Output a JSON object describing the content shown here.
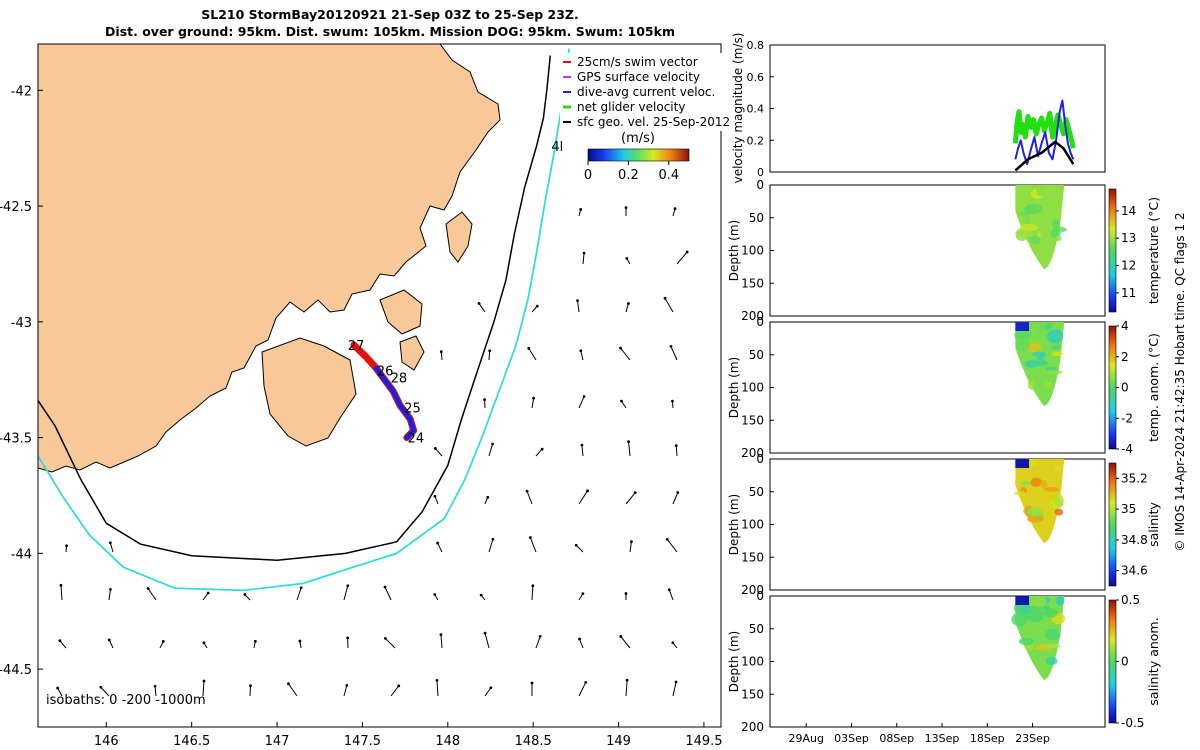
{
  "title": {
    "line1": "SL210 StormBay20120921 21-Sep 03Z to 25-Sep 23Z.",
    "line2": "Dist. over ground: 95km. Dist. swum: 105km. Mission DOG: 95km. Swum: 105km"
  },
  "colors": {
    "land": "#f9c898",
    "track": "#e8100a",
    "track_blue": "#1a22e0",
    "contour200": "#000000",
    "contour1000": "#36dada",
    "velocity_green": "#22e010",
    "velocity_blue": "#2020e0",
    "geo_black": "#000000"
  },
  "map": {
    "xlim": [
      145.6,
      149.6
    ],
    "ylim": [
      -44.75,
      -41.8
    ],
    "x_ticks": [
      146,
      146.5,
      147,
      147.5,
      148,
      148.5,
      149,
      149.5
    ],
    "x_tick_labels": [
      "146",
      "146.5",
      "147",
      "147.5",
      "148",
      "148.5",
      "149",
      "149.5"
    ],
    "y_ticks": [
      -42,
      -42.5,
      -43,
      -43.5,
      -44,
      -44.5
    ],
    "y_tick_labels": [
      "-42",
      "-42.5",
      "-43",
      "-43.5",
      "-44",
      "-44.5"
    ],
    "track_day_labels": [
      "27",
      "26",
      "28",
      "25",
      "24"
    ],
    "track_label_points": [
      [
        147.45,
        -43.1
      ],
      [
        147.62,
        -43.21
      ],
      [
        147.7,
        -43.24
      ],
      [
        147.78,
        -43.37
      ],
      [
        147.8,
        -43.5
      ]
    ],
    "time_label": "4h",
    "time_label_pos": [
      148.7,
      -42.24
    ],
    "isobaths_text": "isobaths: 0 -200 -1000m",
    "isobath_200": [
      [
        145.6,
        -43.34
      ],
      [
        145.7,
        -43.45
      ],
      [
        145.85,
        -43.68
      ],
      [
        146.0,
        -43.87
      ],
      [
        146.2,
        -43.96
      ],
      [
        146.5,
        -44.01
      ],
      [
        147.0,
        -44.03
      ],
      [
        147.4,
        -44.0
      ],
      [
        147.7,
        -43.95
      ],
      [
        147.85,
        -43.82
      ],
      [
        148.0,
        -43.62
      ],
      [
        148.08,
        -43.42
      ],
      [
        148.17,
        -43.22
      ],
      [
        148.27,
        -43.0
      ],
      [
        148.34,
        -42.82
      ],
      [
        148.39,
        -42.62
      ],
      [
        148.45,
        -42.42
      ],
      [
        148.52,
        -42.24
      ],
      [
        148.56,
        -42.12
      ],
      [
        148.58,
        -42.0
      ],
      [
        148.6,
        -41.85
      ]
    ],
    "isobath_1000": [
      [
        145.6,
        -43.58
      ],
      [
        145.75,
        -43.76
      ],
      [
        145.9,
        -43.92
      ],
      [
        146.1,
        -44.06
      ],
      [
        146.4,
        -44.15
      ],
      [
        146.8,
        -44.16
      ],
      [
        147.15,
        -44.13
      ],
      [
        147.4,
        -44.07
      ],
      [
        147.7,
        -44.0
      ],
      [
        147.98,
        -43.85
      ],
      [
        148.1,
        -43.68
      ],
      [
        148.2,
        -43.5
      ],
      [
        148.3,
        -43.3
      ],
      [
        148.4,
        -43.1
      ],
      [
        148.47,
        -42.9
      ],
      [
        148.52,
        -42.7
      ],
      [
        148.57,
        -42.48
      ],
      [
        148.62,
        -42.28
      ],
      [
        148.66,
        -42.1
      ],
      [
        148.69,
        -41.95
      ],
      [
        148.71,
        -41.82
      ]
    ],
    "legend": {
      "entries": [
        "25cm/s swim vector",
        "GPS surface velocity",
        "dive-avg current veloc.",
        "net glider velocity",
        "sfc geo. vel. 25-Sep-2012"
      ],
      "entry_colors": [
        "#e8100a",
        "#b040e0",
        "#1a22e0",
        "#22e010",
        "#000000"
      ],
      "colorbar_label": "(m/s)",
      "colorbar_ticks": [
        "0",
        "0.2",
        "0.4"
      ],
      "colorbar_values": [
        0,
        0.2,
        0.4
      ],
      "colorbar_range": [
        0,
        0.5
      ]
    }
  },
  "velocity_panel": {
    "ylabel": "velocity magnitude (m/s)",
    "ylim": [
      0,
      0.8
    ],
    "yticks": [
      "0",
      "0.2",
      "0.4",
      "0.6",
      "0.8"
    ],
    "ytick_values": [
      0,
      0.2,
      0.4,
      0.6,
      0.8
    ],
    "series": [
      {
        "name": "net glider velocity",
        "color": "#22e010",
        "x": [
          21.1,
          21.3,
          21.5,
          21.7,
          21.9,
          22.2,
          22.5,
          22.8,
          23.1,
          23.4,
          23.7,
          24.0,
          24.3,
          24.6,
          24.9,
          25.2,
          25.5,
          25.8,
          26.1,
          26.4,
          26.7,
          27.0,
          27.3,
          27.5
        ],
        "y": [
          0.18,
          0.32,
          0.38,
          0.25,
          0.3,
          0.22,
          0.35,
          0.28,
          0.33,
          0.24,
          0.3,
          0.34,
          0.26,
          0.31,
          0.37,
          0.22,
          0.29,
          0.36,
          0.3,
          0.24,
          0.33,
          0.27,
          0.2,
          0.15
        ]
      },
      {
        "name": "dive-avg current veloc.",
        "color": "#2020e0",
        "x": [
          21.1,
          21.4,
          21.7,
          22.0,
          22.4,
          22.8,
          23.2,
          23.6,
          24.0,
          24.4,
          24.8,
          25.2,
          25.6,
          26.0,
          26.3,
          26.6,
          26.9,
          27.2,
          27.5
        ],
        "y": [
          0.08,
          0.15,
          0.2,
          0.12,
          0.05,
          0.14,
          0.22,
          0.1,
          0.18,
          0.25,
          0.12,
          0.08,
          0.2,
          0.38,
          0.45,
          0.3,
          0.18,
          0.12,
          0.08
        ]
      },
      {
        "name": "sfc geo. vel.",
        "color": "#000000",
        "x": [
          21.1,
          22.5,
          24.0,
          25.5,
          26.4,
          27.5
        ],
        "y": [
          0.01,
          0.08,
          0.12,
          0.19,
          0.15,
          0.05
        ]
      }
    ]
  },
  "depth_panels": [
    {
      "name": "temperature",
      "cbar_label": "temperature (°C)",
      "cbar_ticks": [
        "11",
        "12",
        "13",
        "14"
      ],
      "cbar_tick_values": [
        11,
        12,
        13,
        14
      ],
      "cbar_range": [
        10.3,
        14.8
      ],
      "fill_value": 12.9
    },
    {
      "name": "temp-anomaly",
      "cbar_label": "temp. anom. (°C)",
      "cbar_ticks": [
        "-4",
        "-2",
        "0",
        "2",
        "4"
      ],
      "cbar_tick_values": [
        -4,
        -2,
        0,
        2,
        4
      ],
      "cbar_range": [
        -4,
        4
      ],
      "fill_value": 0.4
    },
    {
      "name": "salinity",
      "cbar_label": "salinity",
      "cbar_ticks": [
        "34.6",
        "34.8",
        "35",
        "35.2"
      ],
      "cbar_tick_values": [
        34.6,
        34.8,
        35,
        35.2
      ],
      "cbar_range": [
        34.5,
        35.3
      ],
      "fill_value": 35.06
    },
    {
      "name": "salinity-anomaly",
      "cbar_label": "salinity anom.",
      "cbar_ticks": [
        "-0.5",
        "0",
        "0.5"
      ],
      "cbar_tick_values": [
        -0.5,
        0,
        0.5
      ],
      "cbar_range": [
        -0.5,
        0.5
      ],
      "fill_value": 0.05
    }
  ],
  "depth_axis": {
    "ylabel": "Depth (m)",
    "ylim": [
      0,
      200
    ],
    "yticks": [
      "0",
      "50",
      "100",
      "150",
      "200"
    ],
    "ytick_values": [
      0,
      50,
      100,
      150,
      200
    ]
  },
  "time_axis": {
    "range_days": [
      25,
      62
    ],
    "ticks": [
      "29Aug",
      "03Sep",
      "08Sep",
      "13Sep",
      "18Sep",
      "23Sep"
    ],
    "tick_values": [
      29,
      34,
      39,
      44,
      49,
      54
    ],
    "data_start": 52.1,
    "data_end": 57.5
  },
  "footer": "© IMOS 14-Apr-2024 21:42:35 Hobart time. QC flags 1  2",
  "chart_data": [
    {
      "type": "scatter",
      "title": "SL210 StormBay20120921 21-Sep 03Z to 25-Sep 23Z.",
      "xlabel": "",
      "ylabel": "",
      "xlim": [
        145.6,
        149.6
      ],
      "ylim": [
        -44.75,
        -41.8
      ],
      "series": [
        {
          "name": "glider track",
          "x": [
            147.45,
            147.52,
            147.58,
            147.62,
            147.68,
            147.72,
            147.78,
            147.8,
            147.76
          ],
          "y": [
            -43.1,
            -43.15,
            -43.2,
            -43.24,
            -43.3,
            -43.36,
            -43.42,
            -43.47,
            -43.5
          ]
        }
      ]
    },
    {
      "type": "line",
      "ylabel": "velocity magnitude (m/s)",
      "ylim": [
        0,
        0.8
      ],
      "series": [
        {
          "name": "net glider velocity",
          "values": [
            0.18,
            0.32,
            0.38,
            0.25,
            0.3,
            0.22,
            0.35,
            0.28,
            0.33,
            0.24,
            0.3,
            0.34,
            0.26,
            0.31,
            0.37,
            0.22,
            0.29,
            0.36,
            0.3,
            0.24,
            0.33,
            0.27,
            0.2,
            0.15
          ]
        },
        {
          "name": "dive-avg current veloc.",
          "values": [
            0.08,
            0.15,
            0.2,
            0.12,
            0.05,
            0.14,
            0.22,
            0.1,
            0.18,
            0.25,
            0.12,
            0.08,
            0.2,
            0.38,
            0.45,
            0.3,
            0.18,
            0.12,
            0.08
          ]
        },
        {
          "name": "sfc geo. vel.",
          "values": [
            0.01,
            0.08,
            0.12,
            0.19,
            0.15,
            0.05
          ]
        }
      ]
    },
    {
      "type": "heatmap",
      "ylabel": "Depth (m)",
      "ylim": [
        0,
        200
      ],
      "colorbar": "temperature (°C)"
    },
    {
      "type": "heatmap",
      "ylabel": "Depth (m)",
      "ylim": [
        0,
        200
      ],
      "colorbar": "temp. anom. (°C)"
    },
    {
      "type": "heatmap",
      "ylabel": "Depth (m)",
      "ylim": [
        0,
        200
      ],
      "colorbar": "salinity"
    },
    {
      "type": "heatmap",
      "ylabel": "Depth (m)",
      "ylim": [
        0,
        200
      ],
      "colorbar": "salinity anom."
    }
  ]
}
